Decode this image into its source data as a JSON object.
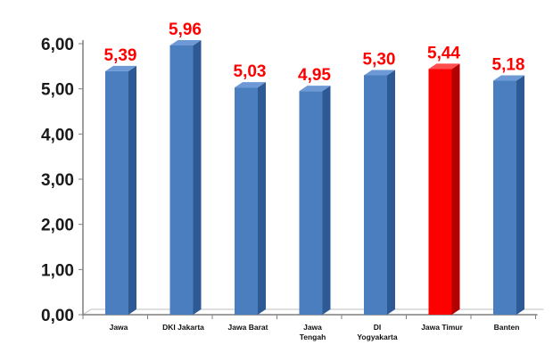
{
  "chart_data": {
    "type": "bar",
    "categories": [
      "Jawa",
      "DKI Jakarta",
      "Jawa Barat",
      "Jawa Tengah",
      "DI Yogyakarta",
      "Jawa Timur",
      "Banten"
    ],
    "x_tick_labels": [
      [
        "Jawa"
      ],
      [
        "DKI Jakarta"
      ],
      [
        "Jawa Barat"
      ],
      [
        "Jawa",
        "Tengah"
      ],
      [
        "DI",
        "Yogyakarta"
      ],
      [
        "Jawa Timur"
      ],
      [
        "Banten"
      ]
    ],
    "values": [
      5.39,
      5.96,
      5.03,
      4.95,
      5.3,
      5.44,
      5.18
    ],
    "data_labels": [
      "5,39",
      "5,96",
      "5,03",
      "4,95",
      "5,30",
      "5,44",
      "5,18"
    ],
    "y_ticks": [
      "0,00",
      "1,00",
      "2,00",
      "3,00",
      "4,00",
      "5,00",
      "6,00"
    ],
    "ylim": [
      0,
      6
    ],
    "grid": false,
    "highlight_category": "Jawa Timur",
    "colors": {
      "bar": "#4a7ebf",
      "bar_side": "#2d5a94",
      "bar_top": "#6d9ad6",
      "highlight": "#ff0000",
      "highlight_side": "#b30000",
      "highlight_top": "#ff4d4d",
      "label": "#ff0000",
      "axis": "#7f7f7f"
    }
  }
}
